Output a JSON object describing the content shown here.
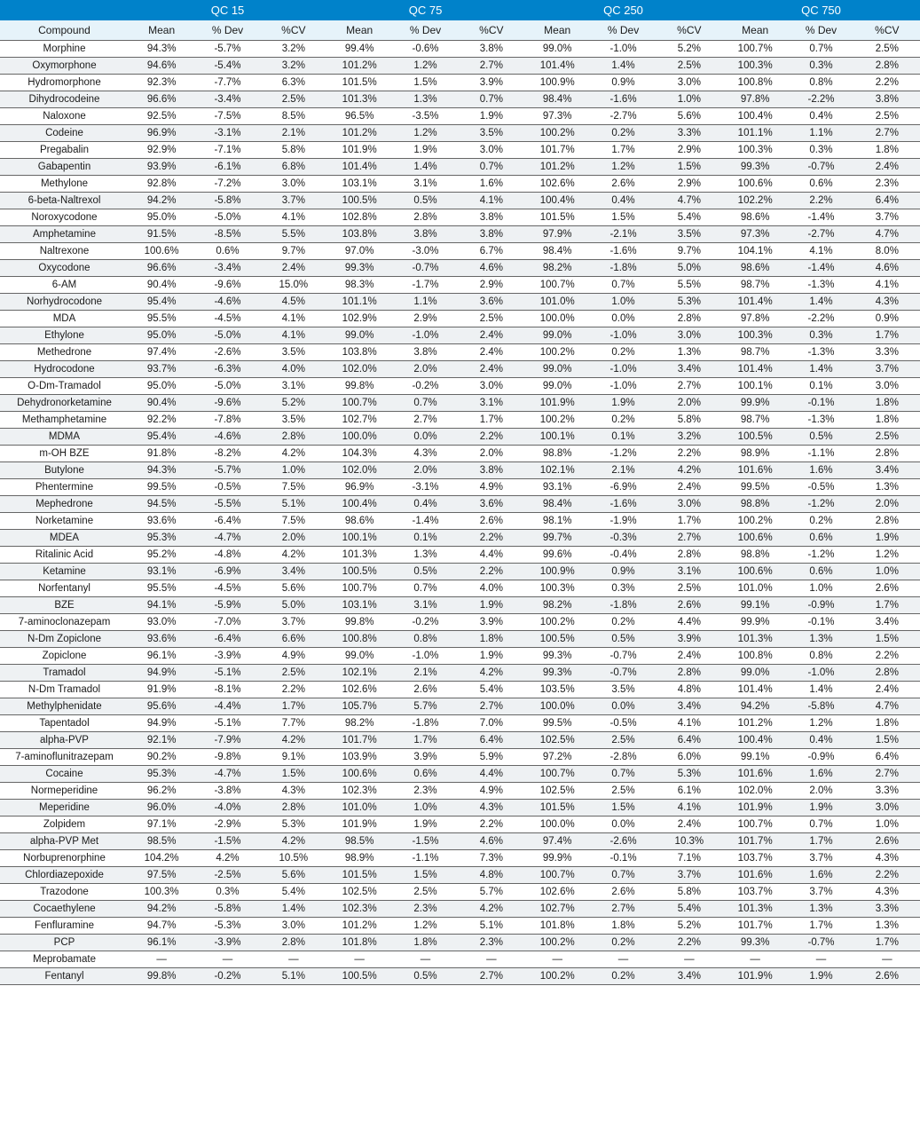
{
  "qc_groups": [
    "QC 15",
    "QC 75",
    "QC 250",
    "QC 750"
  ],
  "sub_headers": [
    "Compound",
    "Mean",
    "% Dev",
    "%CV",
    "Mean",
    "% Dev",
    "%CV",
    "Mean",
    "% Dev",
    "%CV",
    "Mean",
    "% Dev",
    "%CV"
  ],
  "header_bg": "#0082ca",
  "header_fg": "#ffffff",
  "subheader_bg": "#e6f3fa",
  "row_alt_bg": "#eef1f3",
  "border_color": "#666666",
  "rows": [
    {
      "compound": "Morphine",
      "v": [
        "94.3%",
        "-5.7%",
        "3.2%",
        "99.4%",
        "-0.6%",
        "3.8%",
        "99.0%",
        "-1.0%",
        "5.2%",
        "100.7%",
        "0.7%",
        "2.5%"
      ]
    },
    {
      "compound": "Oxymorphone",
      "v": [
        "94.6%",
        "-5.4%",
        "3.2%",
        "101.2%",
        "1.2%",
        "2.7%",
        "101.4%",
        "1.4%",
        "2.5%",
        "100.3%",
        "0.3%",
        "2.8%"
      ]
    },
    {
      "compound": "Hydromorphone",
      "v": [
        "92.3%",
        "-7.7%",
        "6.3%",
        "101.5%",
        "1.5%",
        "3.9%",
        "100.9%",
        "0.9%",
        "3.0%",
        "100.8%",
        "0.8%",
        "2.2%"
      ]
    },
    {
      "compound": "Dihydrocodeine",
      "v": [
        "96.6%",
        "-3.4%",
        "2.5%",
        "101.3%",
        "1.3%",
        "0.7%",
        "98.4%",
        "-1.6%",
        "1.0%",
        "97.8%",
        "-2.2%",
        "3.8%"
      ]
    },
    {
      "compound": "Naloxone",
      "v": [
        "92.5%",
        "-7.5%",
        "8.5%",
        "96.5%",
        "-3.5%",
        "1.9%",
        "97.3%",
        "-2.7%",
        "5.6%",
        "100.4%",
        "0.4%",
        "2.5%"
      ]
    },
    {
      "compound": "Codeine",
      "v": [
        "96.9%",
        "-3.1%",
        "2.1%",
        "101.2%",
        "1.2%",
        "3.5%",
        "100.2%",
        "0.2%",
        "3.3%",
        "101.1%",
        "1.1%",
        "2.7%"
      ]
    },
    {
      "compound": "Pregabalin",
      "v": [
        "92.9%",
        "-7.1%",
        "5.8%",
        "101.9%",
        "1.9%",
        "3.0%",
        "101.7%",
        "1.7%",
        "2.9%",
        "100.3%",
        "0.3%",
        "1.8%"
      ]
    },
    {
      "compound": "Gabapentin",
      "v": [
        "93.9%",
        "-6.1%",
        "6.8%",
        "101.4%",
        "1.4%",
        "0.7%",
        "101.2%",
        "1.2%",
        "1.5%",
        "99.3%",
        "-0.7%",
        "2.4%"
      ]
    },
    {
      "compound": "Methylone",
      "v": [
        "92.8%",
        "-7.2%",
        "3.0%",
        "103.1%",
        "3.1%",
        "1.6%",
        "102.6%",
        "2.6%",
        "2.9%",
        "100.6%",
        "0.6%",
        "2.3%"
      ]
    },
    {
      "compound": "6-beta-Naltrexol",
      "v": [
        "94.2%",
        "-5.8%",
        "3.7%",
        "100.5%",
        "0.5%",
        "4.1%",
        "100.4%",
        "0.4%",
        "4.7%",
        "102.2%",
        "2.2%",
        "6.4%"
      ]
    },
    {
      "compound": "Noroxycodone",
      "v": [
        "95.0%",
        "-5.0%",
        "4.1%",
        "102.8%",
        "2.8%",
        "3.8%",
        "101.5%",
        "1.5%",
        "5.4%",
        "98.6%",
        "-1.4%",
        "3.7%"
      ]
    },
    {
      "compound": "Amphetamine",
      "v": [
        "91.5%",
        "-8.5%",
        "5.5%",
        "103.8%",
        "3.8%",
        "3.8%",
        "97.9%",
        "-2.1%",
        "3.5%",
        "97.3%",
        "-2.7%",
        "4.7%"
      ]
    },
    {
      "compound": "Naltrexone",
      "v": [
        "100.6%",
        "0.6%",
        "9.7%",
        "97.0%",
        "-3.0%",
        "6.7%",
        "98.4%",
        "-1.6%",
        "9.7%",
        "104.1%",
        "4.1%",
        "8.0%"
      ]
    },
    {
      "compound": "Oxycodone",
      "v": [
        "96.6%",
        "-3.4%",
        "2.4%",
        "99.3%",
        "-0.7%",
        "4.6%",
        "98.2%",
        "-1.8%",
        "5.0%",
        "98.6%",
        "-1.4%",
        "4.6%"
      ]
    },
    {
      "compound": "6-AM",
      "v": [
        "90.4%",
        "-9.6%",
        "15.0%",
        "98.3%",
        "-1.7%",
        "2.9%",
        "100.7%",
        "0.7%",
        "5.5%",
        "98.7%",
        "-1.3%",
        "4.1%"
      ]
    },
    {
      "compound": "Norhydrocodone",
      "v": [
        "95.4%",
        "-4.6%",
        "4.5%",
        "101.1%",
        "1.1%",
        "3.6%",
        "101.0%",
        "1.0%",
        "5.3%",
        "101.4%",
        "1.4%",
        "4.3%"
      ]
    },
    {
      "compound": "MDA",
      "v": [
        "95.5%",
        "-4.5%",
        "4.1%",
        "102.9%",
        "2.9%",
        "2.5%",
        "100.0%",
        "0.0%",
        "2.8%",
        "97.8%",
        "-2.2%",
        "0.9%"
      ]
    },
    {
      "compound": "Ethylone",
      "v": [
        "95.0%",
        "-5.0%",
        "4.1%",
        "99.0%",
        "-1.0%",
        "2.4%",
        "99.0%",
        "-1.0%",
        "3.0%",
        "100.3%",
        "0.3%",
        "1.7%"
      ]
    },
    {
      "compound": "Methedrone",
      "v": [
        "97.4%",
        "-2.6%",
        "3.5%",
        "103.8%",
        "3.8%",
        "2.4%",
        "100.2%",
        "0.2%",
        "1.3%",
        "98.7%",
        "-1.3%",
        "3.3%"
      ]
    },
    {
      "compound": "Hydrocodone",
      "v": [
        "93.7%",
        "-6.3%",
        "4.0%",
        "102.0%",
        "2.0%",
        "2.4%",
        "99.0%",
        "-1.0%",
        "3.4%",
        "101.4%",
        "1.4%",
        "3.7%"
      ]
    },
    {
      "compound": "O-Dm-Tramadol",
      "v": [
        "95.0%",
        "-5.0%",
        "3.1%",
        "99.8%",
        "-0.2%",
        "3.0%",
        "99.0%",
        "-1.0%",
        "2.7%",
        "100.1%",
        "0.1%",
        "3.0%"
      ]
    },
    {
      "compound": "Dehydronorketamine",
      "v": [
        "90.4%",
        "-9.6%",
        "5.2%",
        "100.7%",
        "0.7%",
        "3.1%",
        "101.9%",
        "1.9%",
        "2.0%",
        "99.9%",
        "-0.1%",
        "1.8%"
      ]
    },
    {
      "compound": "Methamphetamine",
      "v": [
        "92.2%",
        "-7.8%",
        "3.5%",
        "102.7%",
        "2.7%",
        "1.7%",
        "100.2%",
        "0.2%",
        "5.8%",
        "98.7%",
        "-1.3%",
        "1.8%"
      ]
    },
    {
      "compound": "MDMA",
      "v": [
        "95.4%",
        "-4.6%",
        "2.8%",
        "100.0%",
        "0.0%",
        "2.2%",
        "100.1%",
        "0.1%",
        "3.2%",
        "100.5%",
        "0.5%",
        "2.5%"
      ]
    },
    {
      "compound": "m-OH BZE",
      "v": [
        "91.8%",
        "-8.2%",
        "4.2%",
        "104.3%",
        "4.3%",
        "2.0%",
        "98.8%",
        "-1.2%",
        "2.2%",
        "98.9%",
        "-1.1%",
        "2.8%"
      ]
    },
    {
      "compound": "Butylone",
      "v": [
        "94.3%",
        "-5.7%",
        "1.0%",
        "102.0%",
        "2.0%",
        "3.8%",
        "102.1%",
        "2.1%",
        "4.2%",
        "101.6%",
        "1.6%",
        "3.4%"
      ]
    },
    {
      "compound": "Phentermine",
      "v": [
        "99.5%",
        "-0.5%",
        "7.5%",
        "96.9%",
        "-3.1%",
        "4.9%",
        "93.1%",
        "-6.9%",
        "2.4%",
        "99.5%",
        "-0.5%",
        "1.3%"
      ]
    },
    {
      "compound": "Mephedrone",
      "v": [
        "94.5%",
        "-5.5%",
        "5.1%",
        "100.4%",
        "0.4%",
        "3.6%",
        "98.4%",
        "-1.6%",
        "3.0%",
        "98.8%",
        "-1.2%",
        "2.0%"
      ]
    },
    {
      "compound": "Norketamine",
      "v": [
        "93.6%",
        "-6.4%",
        "7.5%",
        "98.6%",
        "-1.4%",
        "2.6%",
        "98.1%",
        "-1.9%",
        "1.7%",
        "100.2%",
        "0.2%",
        "2.8%"
      ]
    },
    {
      "compound": "MDEA",
      "v": [
        "95.3%",
        "-4.7%",
        "2.0%",
        "100.1%",
        "0.1%",
        "2.2%",
        "99.7%",
        "-0.3%",
        "2.7%",
        "100.6%",
        "0.6%",
        "1.9%"
      ]
    },
    {
      "compound": "Ritalinic Acid",
      "v": [
        "95.2%",
        "-4.8%",
        "4.2%",
        "101.3%",
        "1.3%",
        "4.4%",
        "99.6%",
        "-0.4%",
        "2.8%",
        "98.8%",
        "-1.2%",
        "1.2%"
      ]
    },
    {
      "compound": "Ketamine",
      "v": [
        "93.1%",
        "-6.9%",
        "3.4%",
        "100.5%",
        "0.5%",
        "2.2%",
        "100.9%",
        "0.9%",
        "3.1%",
        "100.6%",
        "0.6%",
        "1.0%"
      ]
    },
    {
      "compound": "Norfentanyl",
      "v": [
        "95.5%",
        "-4.5%",
        "5.6%",
        "100.7%",
        "0.7%",
        "4.0%",
        "100.3%",
        "0.3%",
        "2.5%",
        "101.0%",
        "1.0%",
        "2.6%"
      ]
    },
    {
      "compound": "BZE",
      "v": [
        "94.1%",
        "-5.9%",
        "5.0%",
        "103.1%",
        "3.1%",
        "1.9%",
        "98.2%",
        "-1.8%",
        "2.6%",
        "99.1%",
        "-0.9%",
        "1.7%"
      ]
    },
    {
      "compound": "7-aminoclonazepam",
      "v": [
        "93.0%",
        "-7.0%",
        "3.7%",
        "99.8%",
        "-0.2%",
        "3.9%",
        "100.2%",
        "0.2%",
        "4.4%",
        "99.9%",
        "-0.1%",
        "3.4%"
      ]
    },
    {
      "compound": "N-Dm Zopiclone",
      "v": [
        "93.6%",
        "-6.4%",
        "6.6%",
        "100.8%",
        "0.8%",
        "1.8%",
        "100.5%",
        "0.5%",
        "3.9%",
        "101.3%",
        "1.3%",
        "1.5%"
      ]
    },
    {
      "compound": "Zopiclone",
      "v": [
        "96.1%",
        "-3.9%",
        "4.9%",
        "99.0%",
        "-1.0%",
        "1.9%",
        "99.3%",
        "-0.7%",
        "2.4%",
        "100.8%",
        "0.8%",
        "2.2%"
      ]
    },
    {
      "compound": "Tramadol",
      "v": [
        "94.9%",
        "-5.1%",
        "2.5%",
        "102.1%",
        "2.1%",
        "4.2%",
        "99.3%",
        "-0.7%",
        "2.8%",
        "99.0%",
        "-1.0%",
        "2.8%"
      ]
    },
    {
      "compound": "N-Dm Tramadol",
      "v": [
        "91.9%",
        "-8.1%",
        "2.2%",
        "102.6%",
        "2.6%",
        "5.4%",
        "103.5%",
        "3.5%",
        "4.8%",
        "101.4%",
        "1.4%",
        "2.4%"
      ]
    },
    {
      "compound": "Methylphenidate",
      "v": [
        "95.6%",
        "-4.4%",
        "1.7%",
        "105.7%",
        "5.7%",
        "2.7%",
        "100.0%",
        "0.0%",
        "3.4%",
        "94.2%",
        "-5.8%",
        "4.7%"
      ]
    },
    {
      "compound": "Tapentadol",
      "v": [
        "94.9%",
        "-5.1%",
        "7.7%",
        "98.2%",
        "-1.8%",
        "7.0%",
        "99.5%",
        "-0.5%",
        "4.1%",
        "101.2%",
        "1.2%",
        "1.8%"
      ]
    },
    {
      "compound": "alpha-PVP",
      "v": [
        "92.1%",
        "-7.9%",
        "4.2%",
        "101.7%",
        "1.7%",
        "6.4%",
        "102.5%",
        "2.5%",
        "6.4%",
        "100.4%",
        "0.4%",
        "1.5%"
      ]
    },
    {
      "compound": "7-aminoflunitrazepam",
      "v": [
        "90.2%",
        "-9.8%",
        "9.1%",
        "103.9%",
        "3.9%",
        "5.9%",
        "97.2%",
        "-2.8%",
        "6.0%",
        "99.1%",
        "-0.9%",
        "6.4%"
      ]
    },
    {
      "compound": "Cocaine",
      "v": [
        "95.3%",
        "-4.7%",
        "1.5%",
        "100.6%",
        "0.6%",
        "4.4%",
        "100.7%",
        "0.7%",
        "5.3%",
        "101.6%",
        "1.6%",
        "2.7%"
      ]
    },
    {
      "compound": "Normeperidine",
      "v": [
        "96.2%",
        "-3.8%",
        "4.3%",
        "102.3%",
        "2.3%",
        "4.9%",
        "102.5%",
        "2.5%",
        "6.1%",
        "102.0%",
        "2.0%",
        "3.3%"
      ]
    },
    {
      "compound": "Meperidine",
      "v": [
        "96.0%",
        "-4.0%",
        "2.8%",
        "101.0%",
        "1.0%",
        "4.3%",
        "101.5%",
        "1.5%",
        "4.1%",
        "101.9%",
        "1.9%",
        "3.0%"
      ]
    },
    {
      "compound": "Zolpidem",
      "v": [
        "97.1%",
        "-2.9%",
        "5.3%",
        "101.9%",
        "1.9%",
        "2.2%",
        "100.0%",
        "0.0%",
        "2.4%",
        "100.7%",
        "0.7%",
        "1.0%"
      ]
    },
    {
      "compound": "alpha-PVP Met",
      "v": [
        "98.5%",
        "-1.5%",
        "4.2%",
        "98.5%",
        "-1.5%",
        "4.6%",
        "97.4%",
        "-2.6%",
        "10.3%",
        "101.7%",
        "1.7%",
        "2.6%"
      ]
    },
    {
      "compound": "Norbuprenorphine",
      "v": [
        "104.2%",
        "4.2%",
        "10.5%",
        "98.9%",
        "-1.1%",
        "7.3%",
        "99.9%",
        "-0.1%",
        "7.1%",
        "103.7%",
        "3.7%",
        "4.3%"
      ]
    },
    {
      "compound": "Chlordiazepoxide",
      "v": [
        "97.5%",
        "-2.5%",
        "5.6%",
        "101.5%",
        "1.5%",
        "4.8%",
        "100.7%",
        "0.7%",
        "3.7%",
        "101.6%",
        "1.6%",
        "2.2%"
      ]
    },
    {
      "compound": "Trazodone",
      "v": [
        "100.3%",
        "0.3%",
        "5.4%",
        "102.5%",
        "2.5%",
        "5.7%",
        "102.6%",
        "2.6%",
        "5.8%",
        "103.7%",
        "3.7%",
        "4.3%"
      ]
    },
    {
      "compound": "Cocaethylene",
      "v": [
        "94.2%",
        "-5.8%",
        "1.4%",
        "102.3%",
        "2.3%",
        "4.2%",
        "102.7%",
        "2.7%",
        "5.4%",
        "101.3%",
        "1.3%",
        "3.3%"
      ]
    },
    {
      "compound": "Fenfluramine",
      "v": [
        "94.7%",
        "-5.3%",
        "3.0%",
        "101.2%",
        "1.2%",
        "5.1%",
        "101.8%",
        "1.8%",
        "5.2%",
        "101.7%",
        "1.7%",
        "1.3%"
      ]
    },
    {
      "compound": "PCP",
      "v": [
        "96.1%",
        "-3.9%",
        "2.8%",
        "101.8%",
        "1.8%",
        "2.3%",
        "100.2%",
        "0.2%",
        "2.2%",
        "99.3%",
        "-0.7%",
        "1.7%"
      ]
    },
    {
      "compound": "Meprobamate",
      "v": [
        "—",
        "—",
        "—",
        "—",
        "—",
        "—",
        "—",
        "—",
        "—",
        "—",
        "—",
        "—"
      ]
    },
    {
      "compound": "Fentanyl",
      "v": [
        "99.8%",
        "-0.2%",
        "5.1%",
        "100.5%",
        "0.5%",
        "2.7%",
        "100.2%",
        "0.2%",
        "3.4%",
        "101.9%",
        "1.9%",
        "2.6%"
      ]
    }
  ]
}
